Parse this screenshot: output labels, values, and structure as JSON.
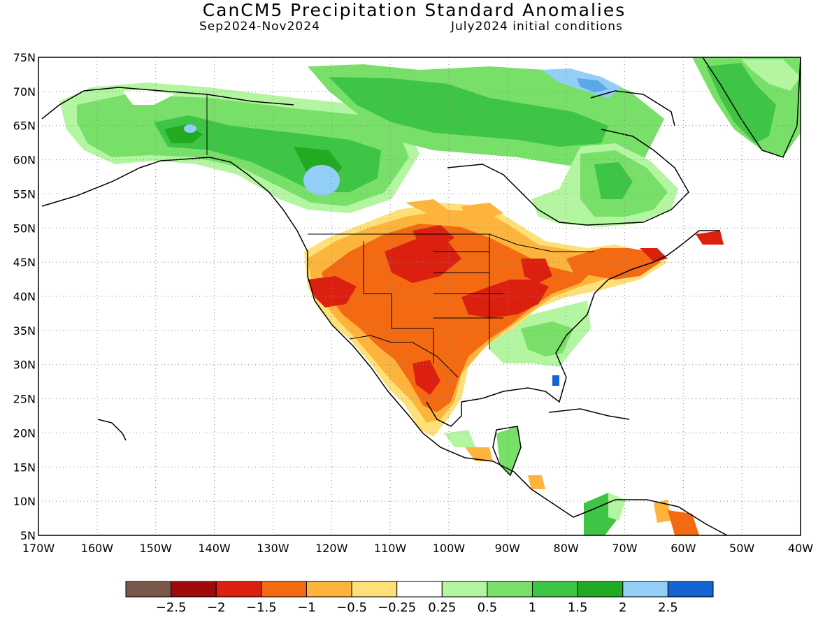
{
  "header": {
    "title": "CanCM5 Precipitation Standard Anomalies",
    "period": "Sep2024-Nov2024",
    "init": "July2024 initial conditions"
  },
  "axes": {
    "lat_labels": [
      "75N",
      "70N",
      "65N",
      "60N",
      "55N",
      "50N",
      "45N",
      "40N",
      "35N",
      "30N",
      "25N",
      "20N",
      "15N",
      "10N",
      "5N"
    ],
    "lat_values": [
      75,
      70,
      65,
      60,
      55,
      50,
      45,
      40,
      35,
      30,
      25,
      20,
      15,
      10,
      5
    ],
    "lon_labels": [
      "170W",
      "160W",
      "150W",
      "140W",
      "130W",
      "120W",
      "110W",
      "100W",
      "90W",
      "80W",
      "70W",
      "60W",
      "50W",
      "40W"
    ],
    "lon_values": [
      -170,
      -160,
      -150,
      -140,
      -130,
      -120,
      -110,
      -100,
      -90,
      -80,
      -70,
      -60,
      -50,
      -40
    ],
    "lon_range": [
      -170,
      -40
    ],
    "lat_range": [
      5,
      75
    ]
  },
  "colorbar": {
    "colors": [
      "#7a574b",
      "#a10a0a",
      "#dc2010",
      "#f46a12",
      "#fcb43c",
      "#fde078",
      "#ffffff",
      "#b4f5a2",
      "#78e068",
      "#3fc546",
      "#22aa22",
      "#92cef5",
      "#1464d2"
    ],
    "labels": [
      "-2.5",
      "-2",
      "-1.5",
      "-1",
      "-0.5",
      "-0.25",
      "0.25",
      "0.5",
      "1",
      "1.5",
      "2",
      "2.5"
    ]
  },
  "colors": {
    "wet_light": "#b4f5a2",
    "wet_mid": "#78e068",
    "wet_strong": "#3fc546",
    "wet_dark": "#22aa22",
    "wet_blue": "#92cef5",
    "dry_yellow": "#fde078",
    "dry_light": "#fcb43c",
    "dry_orange": "#f46a12",
    "dry_red": "#dc2010"
  }
}
